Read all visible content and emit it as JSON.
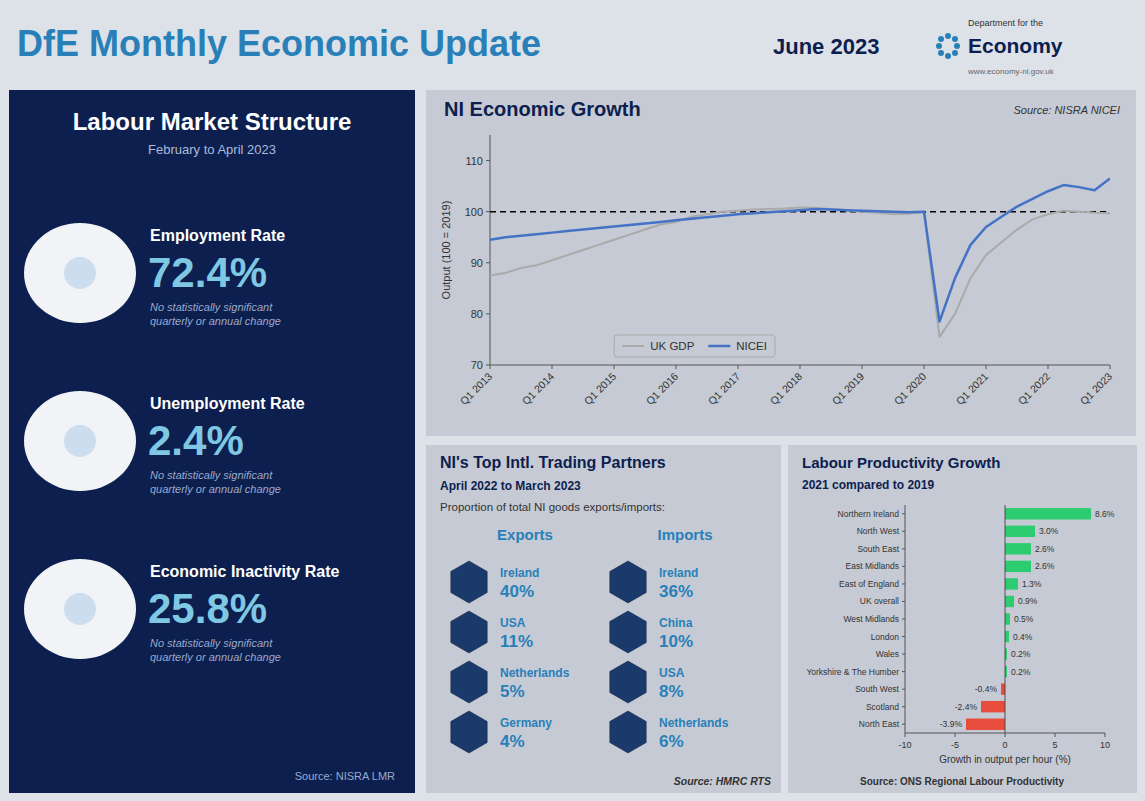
{
  "title": "DfE Monthly Economic Update",
  "subtitle": "June 2023",
  "annotations": [
    "Department for the",
    "Economy",
    "www.economy-ni.gov.uk"
  ],
  "chart_data": [
    {
      "type": "stat",
      "title": "Labour Market Structure",
      "subtitle": "February to April 2023",
      "categories": [
        "Employment Rate",
        "Unemployment Rate",
        "Economic Inactivity Rate"
      ],
      "values": [
        72.4,
        2.4,
        25.8
      ],
      "value_labels": [
        "72.4%",
        "2.4%",
        "25.8%"
      ],
      "data_labels": true,
      "annotations": [
        "No statistically significant\nquarterly or annual change",
        "No statistically significant\nquarterly or annual change",
        "No statistically significant\nquarterly or annual change",
        "Source: NISRA LMR"
      ]
    },
    {
      "type": "line",
      "title": "NI Economic Growth",
      "annotations": [
        "Source: NISRA NICEI"
      ],
      "ylabel": "Output (100 = 2019)",
      "ylim": [
        70,
        115
      ],
      "yticks": [
        70,
        80,
        90,
        100,
        110
      ],
      "grid": false,
      "legend": "bottom",
      "reference_line": 100,
      "categories": [
        "Q1 2013",
        null,
        null,
        null,
        "Q1 2014",
        null,
        null,
        null,
        "Q1 2015",
        null,
        null,
        null,
        "Q1 2016",
        null,
        null,
        null,
        "Q1 2017",
        null,
        null,
        null,
        "Q1 2018",
        null,
        null,
        null,
        "Q1 2019",
        null,
        null,
        null,
        "Q1 2020",
        null,
        null,
        null,
        "Q1 2021",
        null,
        null,
        null,
        "Q1 2022",
        null,
        null,
        null,
        "Q1 2023"
      ],
      "series": [
        {
          "name": "UK GDP",
          "color": "#aaaaaa",
          "values": [
            87.5,
            88.0,
            89.0,
            89.5,
            90.5,
            91.5,
            92.5,
            93.5,
            94.5,
            95.5,
            96.5,
            97.5,
            98.0,
            99.0,
            99.5,
            100.0,
            100.2,
            100.4,
            100.5,
            100.6,
            100.8,
            100.7,
            100.5,
            100.3,
            100.0,
            99.8,
            99.5,
            99.6,
            100.0,
            75.5,
            80.0,
            87.0,
            91.5,
            94.0,
            96.5,
            98.5,
            99.5,
            100.2,
            100.0,
            99.8,
            99.7
          ]
        },
        {
          "name": "NICEI",
          "color": "#4472c4",
          "values": [
            94.5,
            95.0,
            95.3,
            95.6,
            95.9,
            96.2,
            96.5,
            96.8,
            97.1,
            97.4,
            97.7,
            98.0,
            98.3,
            98.6,
            98.9,
            99.2,
            99.5,
            99.7,
            99.9,
            100.1,
            100.3,
            100.5,
            100.4,
            100.3,
            100.2,
            100.1,
            100.0,
            99.9,
            100.0,
            78.5,
            87.0,
            93.5,
            97.0,
            99.0,
            101.0,
            102.5,
            104.0,
            105.2,
            104.8,
            104.2,
            106.5
          ]
        }
      ]
    },
    {
      "type": "stat",
      "title": "NI's Top Intl. Trading Partners",
      "subtitle": "April 2022 to March 2023",
      "annotations": [
        "Proportion of total NI goods exports/imports:",
        "Source: HMRC RTS"
      ],
      "data_labels": true,
      "series": [
        {
          "name": "Exports",
          "categories": [
            "Ireland",
            "USA",
            "Netherlands",
            "Germany"
          ],
          "values": [
            40,
            11,
            5,
            4
          ],
          "value_labels": [
            "40%",
            "11%",
            "5%",
            "4%"
          ]
        },
        {
          "name": "Imports",
          "categories": [
            "Ireland",
            "China",
            "USA",
            "Netherlands"
          ],
          "values": [
            36,
            10,
            8,
            6
          ],
          "value_labels": [
            "36%",
            "10%",
            "8%",
            "6%"
          ]
        }
      ]
    },
    {
      "type": "bar",
      "orientation": "horizontal",
      "title": "Labour Productivity Growth",
      "subtitle": "2021 compared to 2019",
      "annotations": [
        "Source: ONS Regional Labour Productivity"
      ],
      "xlabel": "Growth in output per hour (%)",
      "xlim": [
        -10,
        10
      ],
      "xticks": [
        -10,
        -5,
        0,
        5,
        10
      ],
      "grid": false,
      "data_labels": true,
      "categories": [
        "Northern Ireland",
        "North West",
        "South East",
        "East Midlands",
        "East of England",
        "UK overall",
        "West Midlands",
        "London",
        "Wales",
        "Yorkshire & The Humber",
        "South West",
        "Scotland",
        "North East"
      ],
      "values": [
        8.6,
        3.0,
        2.6,
        2.6,
        1.3,
        0.9,
        0.5,
        0.4,
        0.2,
        0.2,
        -0.4,
        -2.4,
        -3.9
      ],
      "value_labels": [
        "8.6%",
        "3.0%",
        "2.6%",
        "2.6%",
        "1.3%",
        "0.9%",
        "0.5%",
        "0.4%",
        "0.2%",
        "0.2%",
        "-0.4%",
        "-2.4%",
        "-3.9%"
      ],
      "colors": [
        "#2ecc71",
        "#2ecc71",
        "#2ecc71",
        "#2ecc71",
        "#2ecc71",
        "#2ecc71",
        "#2ecc71",
        "#2ecc71",
        "#2ecc71",
        "#2ecc71",
        "#e74c3c",
        "#e74c3c",
        "#e74c3c"
      ]
    }
  ]
}
